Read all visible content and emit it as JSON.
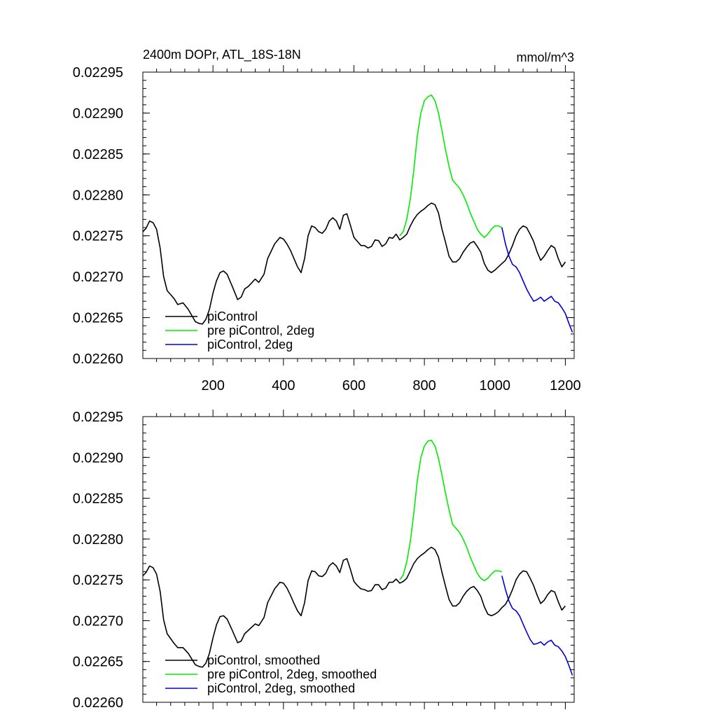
{
  "figure": {
    "title": "2400m DOPr, ATL_18S-18N",
    "units": "mmol/m^3"
  },
  "colors": {
    "piControl": "#000000",
    "pre_piControl_2deg": "#00ee00",
    "piControl_2deg": "#0000dd",
    "axes": "#000000",
    "background": "#ffffff"
  },
  "chart_data": [
    {
      "type": "line",
      "panel": "top",
      "title": "2400m DOPr, ATL_18S-18N",
      "units_label": "mmol/m^3",
      "xlabel": "",
      "ylabel": "",
      "xlim": [
        1,
        1225
      ],
      "ylim": [
        0.0226,
        0.02295
      ],
      "x_ticks": [
        200,
        400,
        600,
        800,
        1000,
        1200
      ],
      "x_tick_labels": [
        "200",
        "400",
        "600",
        "800",
        "1000",
        "1200"
      ],
      "y_ticks": [
        0.0226,
        0.02265,
        0.0227,
        0.02275,
        0.0228,
        0.02285,
        0.0229,
        0.02295
      ],
      "y_tick_labels": [
        "0.02260",
        "0.02265",
        "0.02270",
        "0.02275",
        "0.02280",
        "0.02285",
        "0.02290",
        "0.02295"
      ],
      "legend_position": "bottom-left",
      "series": [
        {
          "name": "piControl",
          "legend": "piControl",
          "color": "#000000",
          "x": [
            1,
            10,
            20,
            30,
            40,
            50,
            60,
            70,
            80,
            90,
            100,
            115,
            130,
            150,
            160,
            170,
            180,
            190,
            200,
            210,
            220,
            230,
            240,
            255,
            270,
            280,
            290,
            300,
            320,
            330,
            345,
            355,
            375,
            390,
            400,
            410,
            420,
            430,
            440,
            450,
            460,
            470,
            480,
            490,
            500,
            510,
            520,
            530,
            540,
            550,
            560,
            570,
            580,
            590,
            600,
            610,
            620,
            630,
            640,
            650,
            660,
            670,
            680,
            690,
            700,
            710,
            720,
            730,
            740,
            750,
            760,
            770,
            780,
            790,
            800,
            810,
            820,
            830,
            840,
            850,
            860,
            870,
            880,
            890,
            900,
            910,
            920,
            930,
            940,
            950,
            960,
            970,
            980,
            990,
            1000,
            1010,
            1020,
            1030,
            1040,
            1050,
            1060,
            1070,
            1080,
            1090,
            1100,
            1110,
            1120,
            1130,
            1140,
            1150,
            1160,
            1170,
            1180,
            1190,
            1200
          ],
          "values": [
            0.022755,
            0.022759,
            0.022768,
            0.022766,
            0.022758,
            0.022735,
            0.0227,
            0.022683,
            0.022678,
            0.022673,
            0.022666,
            0.022668,
            0.02266,
            0.022645,
            0.022643,
            0.022642,
            0.022648,
            0.02266,
            0.02268,
            0.022695,
            0.022705,
            0.022707,
            0.022703,
            0.022688,
            0.022672,
            0.022675,
            0.022685,
            0.022688,
            0.022697,
            0.022693,
            0.022703,
            0.022722,
            0.02274,
            0.022748,
            0.022746,
            0.02274,
            0.022732,
            0.022722,
            0.022712,
            0.022705,
            0.022722,
            0.02275,
            0.022762,
            0.02276,
            0.022755,
            0.022753,
            0.022758,
            0.022768,
            0.022772,
            0.022768,
            0.022758,
            0.022775,
            0.022777,
            0.022763,
            0.022748,
            0.022743,
            0.022738,
            0.022738,
            0.022735,
            0.022737,
            0.022745,
            0.022744,
            0.022737,
            0.02274,
            0.022748,
            0.022747,
            0.022752,
            0.022745,
            0.022748,
            0.022752,
            0.022762,
            0.02277,
            0.022776,
            0.02278,
            0.022783,
            0.022787,
            0.02279,
            0.022788,
            0.022778,
            0.022758,
            0.022742,
            0.022725,
            0.022718,
            0.022718,
            0.022722,
            0.02273,
            0.022736,
            0.022741,
            0.022743,
            0.022737,
            0.02273,
            0.022716,
            0.022708,
            0.022705,
            0.022708,
            0.022712,
            0.022716,
            0.02272,
            0.022728,
            0.022738,
            0.02275,
            0.022758,
            0.022762,
            0.02276,
            0.022752,
            0.022743,
            0.02273,
            0.02272,
            0.022725,
            0.022732,
            0.022738,
            0.022735,
            0.022722,
            0.022712,
            0.022718
          ]
        },
        {
          "name": "pre piControl, 2deg",
          "legend": "pre piControl, 2deg",
          "color": "#00ee00",
          "x": [
            730,
            740,
            750,
            760,
            770,
            780,
            790,
            800,
            810,
            820,
            830,
            840,
            850,
            860,
            870,
            880,
            890,
            900,
            910,
            920,
            930,
            940,
            950,
            960,
            970,
            980,
            990,
            1000,
            1010,
            1020
          ],
          "values": [
            0.02275,
            0.022755,
            0.02277,
            0.022795,
            0.02283,
            0.022872,
            0.0229,
            0.022915,
            0.02292,
            0.022922,
            0.022915,
            0.0229,
            0.022878,
            0.022855,
            0.022835,
            0.022818,
            0.022813,
            0.022808,
            0.0228,
            0.02279,
            0.022778,
            0.022768,
            0.022758,
            0.022752,
            0.022748,
            0.022752,
            0.022758,
            0.022762,
            0.022762,
            0.02276
          ]
        },
        {
          "name": "piControl, 2deg",
          "legend": "piControl, 2deg",
          "color": "#0000dd",
          "x": [
            1020,
            1030,
            1040,
            1050,
            1060,
            1070,
            1080,
            1090,
            1100,
            1110,
            1120,
            1130,
            1140,
            1150,
            1160,
            1170,
            1180,
            1190,
            1200,
            1210,
            1220
          ],
          "values": [
            0.02276,
            0.02274,
            0.022725,
            0.022715,
            0.022712,
            0.022705,
            0.022695,
            0.022685,
            0.022677,
            0.02267,
            0.022672,
            0.022675,
            0.02267,
            0.022673,
            0.022676,
            0.02267,
            0.022668,
            0.022662,
            0.022655,
            0.022643,
            0.022632
          ]
        }
      ]
    },
    {
      "type": "line",
      "panel": "bottom",
      "title": "",
      "xlabel": "",
      "ylabel": "",
      "xlim": [
        1,
        1225
      ],
      "ylim": [
        0.0226,
        0.02295
      ],
      "x_ticks": [
        200,
        400,
        600,
        800,
        1000,
        1200
      ],
      "x_tick_labels": [],
      "y_ticks": [
        0.0226,
        0.02265,
        0.0227,
        0.02275,
        0.0228,
        0.02285,
        0.0229,
        0.02295
      ],
      "y_tick_labels": [
        "0.02260",
        "0.02265",
        "0.02270",
        "0.02275",
        "0.02280",
        "0.02285",
        "0.02290",
        "0.02295"
      ],
      "legend_position": "bottom-left",
      "series": [
        {
          "name": "piControl, smoothed",
          "legend": "piControl, smoothed",
          "color": "#000000",
          "x": [
            1,
            10,
            20,
            30,
            40,
            50,
            60,
            70,
            80,
            90,
            100,
            115,
            130,
            150,
            160,
            170,
            180,
            190,
            200,
            210,
            220,
            230,
            240,
            255,
            270,
            280,
            290,
            300,
            320,
            330,
            345,
            355,
            375,
            390,
            400,
            410,
            420,
            430,
            440,
            450,
            460,
            470,
            480,
            490,
            500,
            510,
            520,
            530,
            540,
            550,
            560,
            570,
            580,
            590,
            600,
            610,
            620,
            630,
            640,
            650,
            660,
            670,
            680,
            690,
            700,
            710,
            720,
            730,
            740,
            750,
            760,
            770,
            780,
            790,
            800,
            810,
            820,
            830,
            840,
            850,
            860,
            870,
            880,
            890,
            900,
            910,
            920,
            930,
            940,
            950,
            960,
            970,
            980,
            990,
            1000,
            1010,
            1020,
            1030,
            1040,
            1050,
            1060,
            1070,
            1080,
            1090,
            1100,
            1110,
            1120,
            1130,
            1140,
            1150,
            1160,
            1170,
            1180,
            1190,
            1200
          ],
          "values": [
            0.022755,
            0.022759,
            0.022767,
            0.022765,
            0.022757,
            0.022736,
            0.022701,
            0.022684,
            0.022678,
            0.022672,
            0.022667,
            0.022667,
            0.02266,
            0.022646,
            0.022644,
            0.022643,
            0.022648,
            0.02266,
            0.022679,
            0.022695,
            0.022705,
            0.022706,
            0.022702,
            0.022688,
            0.022673,
            0.022675,
            0.022684,
            0.022688,
            0.022696,
            0.022694,
            0.022704,
            0.022722,
            0.022739,
            0.022747,
            0.022746,
            0.02274,
            0.022731,
            0.022721,
            0.022712,
            0.022706,
            0.022722,
            0.022749,
            0.022761,
            0.02276,
            0.022755,
            0.022754,
            0.022758,
            0.022767,
            0.022771,
            0.022767,
            0.022759,
            0.022774,
            0.022776,
            0.022763,
            0.022748,
            0.022743,
            0.022739,
            0.022738,
            0.022736,
            0.022737,
            0.022744,
            0.022744,
            0.022738,
            0.02274,
            0.022747,
            0.022747,
            0.022751,
            0.022746,
            0.022748,
            0.022752,
            0.022761,
            0.02277,
            0.022776,
            0.02278,
            0.022783,
            0.022787,
            0.02279,
            0.022787,
            0.022778,
            0.022759,
            0.022742,
            0.022726,
            0.022718,
            0.022718,
            0.022722,
            0.02273,
            0.022736,
            0.02274,
            0.022742,
            0.022737,
            0.02273,
            0.022717,
            0.022708,
            0.022706,
            0.022708,
            0.022711,
            0.022716,
            0.02272,
            0.022728,
            0.022738,
            0.02275,
            0.022757,
            0.022761,
            0.02276,
            0.022752,
            0.022743,
            0.022731,
            0.022721,
            0.022725,
            0.022732,
            0.022737,
            0.022735,
            0.022723,
            0.022713,
            0.022718
          ]
        },
        {
          "name": "pre piControl, 2deg, smoothed",
          "legend": "pre piControl, 2deg, smoothed",
          "color": "#00ee00",
          "x": [
            730,
            740,
            750,
            760,
            770,
            780,
            790,
            800,
            810,
            820,
            830,
            840,
            850,
            860,
            870,
            880,
            890,
            900,
            910,
            920,
            930,
            940,
            950,
            960,
            970,
            980,
            990,
            1000,
            1010,
            1020
          ],
          "values": [
            0.02275,
            0.022756,
            0.022772,
            0.022797,
            0.022832,
            0.022872,
            0.0229,
            0.022914,
            0.02292,
            0.022921,
            0.022914,
            0.022899,
            0.022878,
            0.022856,
            0.022836,
            0.022818,
            0.022813,
            0.022808,
            0.0228,
            0.02279,
            0.022778,
            0.022768,
            0.022758,
            0.022752,
            0.022749,
            0.022752,
            0.022757,
            0.022761,
            0.022761,
            0.02276
          ]
        },
        {
          "name": "piControl, 2deg, smoothed",
          "legend": "piControl, 2deg, smoothed",
          "color": "#0000dd",
          "x": [
            1020,
            1030,
            1040,
            1050,
            1060,
            1070,
            1080,
            1090,
            1100,
            1110,
            1120,
            1130,
            1140,
            1150,
            1160,
            1170,
            1180,
            1190,
            1200,
            1210,
            1220
          ],
          "values": [
            0.022755,
            0.022738,
            0.022724,
            0.022715,
            0.022712,
            0.022706,
            0.022696,
            0.022686,
            0.022677,
            0.022671,
            0.022672,
            0.022674,
            0.02267,
            0.022674,
            0.022676,
            0.02267,
            0.022668,
            0.022663,
            0.022656,
            0.022645,
            0.022633
          ]
        }
      ]
    }
  ]
}
